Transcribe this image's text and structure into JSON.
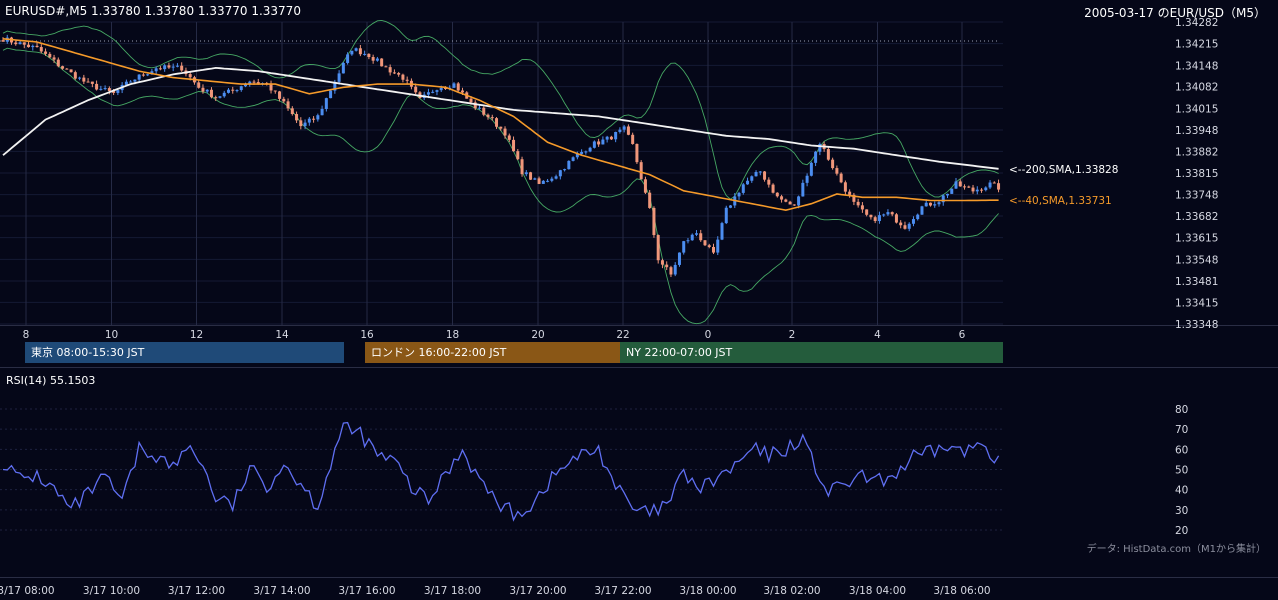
{
  "header": {
    "symbol_ohlc": "EURUSD#,M5 1.33780 1.33780 1.33770 1.33770",
    "date_title": "2005-03-17 のEUR/USD（M5）"
  },
  "sessions": [
    {
      "label": "東京 08:00-15:30 JST",
      "color": "#1f4a78"
    },
    {
      "label": "ロンドン 16:00-22:00 JST",
      "color": "#8a5716"
    },
    {
      "label": "NY 22:00-07:00 JST",
      "color": "#245c3c"
    }
  ],
  "rsi": {
    "label": "RSI(14) 55.1503"
  },
  "credit": "データ: HistData.com（M1から集計）",
  "colors": {
    "background": "#050718",
    "candle_up": "#4c8df0",
    "candle_down": "#f0967a",
    "sma200": "#f2f2f2",
    "sma40": "#f59a2a",
    "bollinger": "#46a864",
    "rsi_line": "#5f6ff2"
  },
  "chart_data": [
    {
      "type": "candlestick",
      "y_ticks": [
        "1.34282",
        "1.34215",
        "1.34148",
        "1.34082",
        "1.34015",
        "1.33948",
        "1.33882",
        "1.33815",
        "1.33748",
        "1.33682",
        "1.33615",
        "1.33548",
        "1.33481",
        "1.33415",
        "1.33348"
      ],
      "ylim": [
        1.33348,
        1.34282
      ],
      "x_ticks": [
        "8",
        "10",
        "12",
        "14",
        "16",
        "18",
        "20",
        "22",
        "0",
        "2",
        "4",
        "6"
      ],
      "annotations": [
        {
          "text": "<--200,SMA,1.33828",
          "value": 1.33828
        },
        {
          "text": "<--40,SMA,1.33731",
          "value": 1.33731
        }
      ],
      "sma200_anchors": [
        [
          0,
          1.3387
        ],
        [
          10,
          1.3398
        ],
        [
          20,
          1.3404
        ],
        [
          30,
          1.3409
        ],
        [
          40,
          1.3412
        ],
        [
          50,
          1.3414
        ],
        [
          60,
          1.3413
        ],
        [
          70,
          1.3411
        ],
        [
          80,
          1.3409
        ],
        [
          90,
          1.3407
        ],
        [
          100,
          1.3405
        ],
        [
          110,
          1.3403
        ],
        [
          120,
          1.3401
        ],
        [
          130,
          1.34
        ],
        [
          140,
          1.3399
        ],
        [
          150,
          1.3397
        ],
        [
          160,
          1.3395
        ],
        [
          170,
          1.3393
        ],
        [
          180,
          1.3392
        ],
        [
          190,
          1.339
        ],
        [
          200,
          1.3389
        ],
        [
          210,
          1.3387
        ],
        [
          220,
          1.3385
        ],
        [
          234,
          1.33828
        ]
      ],
      "sma40_anchors": [
        [
          0,
          1.3423
        ],
        [
          8,
          1.3422
        ],
        [
          16,
          1.3419
        ],
        [
          24,
          1.3416
        ],
        [
          32,
          1.3413
        ],
        [
          40,
          1.3411
        ],
        [
          48,
          1.341
        ],
        [
          56,
          1.3409
        ],
        [
          64,
          1.3409
        ],
        [
          72,
          1.3406
        ],
        [
          80,
          1.3408
        ],
        [
          88,
          1.3409
        ],
        [
          96,
          1.3409
        ],
        [
          104,
          1.3408
        ],
        [
          112,
          1.3404
        ],
        [
          120,
          1.3399
        ],
        [
          128,
          1.3391
        ],
        [
          136,
          1.3387
        ],
        [
          144,
          1.3384
        ],
        [
          152,
          1.3381
        ],
        [
          160,
          1.3376
        ],
        [
          168,
          1.3374
        ],
        [
          176,
          1.3372
        ],
        [
          184,
          1.337
        ],
        [
          190,
          1.3372
        ],
        [
          196,
          1.3375
        ],
        [
          202,
          1.3374
        ],
        [
          210,
          1.3374
        ],
        [
          218,
          1.3373
        ],
        [
          226,
          1.3373
        ],
        [
          234,
          1.33731
        ]
      ],
      "price_anchors": [
        [
          0,
          1.3423
        ],
        [
          8,
          1.342
        ],
        [
          14,
          1.3414
        ],
        [
          20,
          1.3409
        ],
        [
          26,
          1.3406
        ],
        [
          30,
          1.341
        ],
        [
          36,
          1.3414
        ],
        [
          42,
          1.3414
        ],
        [
          46,
          1.3408
        ],
        [
          50,
          1.3405
        ],
        [
          54,
          1.3407
        ],
        [
          58,
          1.341
        ],
        [
          62,
          1.3409
        ],
        [
          66,
          1.3403
        ],
        [
          70,
          1.3396
        ],
        [
          74,
          1.3399
        ],
        [
          78,
          1.341
        ],
        [
          82,
          1.342
        ],
        [
          86,
          1.3418
        ],
        [
          90,
          1.3414
        ],
        [
          94,
          1.3411
        ],
        [
          98,
          1.3404
        ],
        [
          102,
          1.3408
        ],
        [
          106,
          1.3409
        ],
        [
          110,
          1.3403
        ],
        [
          114,
          1.3399
        ],
        [
          118,
          1.3394
        ],
        [
          122,
          1.3382
        ],
        [
          126,
          1.3378
        ],
        [
          130,
          1.3381
        ],
        [
          134,
          1.3386
        ],
        [
          138,
          1.339
        ],
        [
          142,
          1.3392
        ],
        [
          146,
          1.3395
        ],
        [
          148,
          1.339
        ],
        [
          152,
          1.337
        ],
        [
          154,
          1.3355
        ],
        [
          157,
          1.335
        ],
        [
          160,
          1.336
        ],
        [
          163,
          1.3363
        ],
        [
          167,
          1.3356
        ],
        [
          170,
          1.337
        ],
        [
          174,
          1.3378
        ],
        [
          178,
          1.3382
        ],
        [
          182,
          1.3374
        ],
        [
          186,
          1.3371
        ],
        [
          190,
          1.3385
        ],
        [
          192,
          1.3391
        ],
        [
          196,
          1.3381
        ],
        [
          200,
          1.3372
        ],
        [
          204,
          1.3367
        ],
        [
          208,
          1.3369
        ],
        [
          212,
          1.3365
        ],
        [
          216,
          1.3371
        ],
        [
          220,
          1.3373
        ],
        [
          224,
          1.3378
        ],
        [
          228,
          1.3376
        ],
        [
          232,
          1.3378
        ],
        [
          234,
          1.3377
        ]
      ]
    },
    {
      "type": "line",
      "title": "RSI(14) 55.1503",
      "y_ticks": [
        "80",
        "70",
        "60",
        "50",
        "40",
        "30",
        "20"
      ],
      "ylim": [
        20,
        80
      ],
      "x_ticks": [
        "3/17 08:00",
        "3/17 10:00",
        "3/17 12:00",
        "3/17 14:00",
        "3/17 16:00",
        "3/17 18:00",
        "3/17 20:00",
        "3/17 22:00",
        "3/18 00:00",
        "3/18 02:00",
        "3/18 04:00",
        "3/18 06:00"
      ],
      "anchors": [
        [
          0,
          54
        ],
        [
          4,
          45
        ],
        [
          8,
          47
        ],
        [
          12,
          40
        ],
        [
          16,
          30
        ],
        [
          20,
          38
        ],
        [
          24,
          46
        ],
        [
          28,
          34
        ],
        [
          32,
          60
        ],
        [
          36,
          57
        ],
        [
          40,
          51
        ],
        [
          44,
          62
        ],
        [
          46,
          56
        ],
        [
          50,
          36
        ],
        [
          54,
          32
        ],
        [
          58,
          50
        ],
        [
          62,
          42
        ],
        [
          66,
          53
        ],
        [
          70,
          43
        ],
        [
          74,
          32
        ],
        [
          78,
          60
        ],
        [
          80,
          70
        ],
        [
          84,
          68
        ],
        [
          88,
          57
        ],
        [
          92,
          54
        ],
        [
          96,
          41
        ],
        [
          100,
          34
        ],
        [
          104,
          48
        ],
        [
          108,
          60
        ],
        [
          112,
          45
        ],
        [
          116,
          34
        ],
        [
          120,
          28
        ],
        [
          124,
          32
        ],
        [
          128,
          43
        ],
        [
          132,
          52
        ],
        [
          136,
          57
        ],
        [
          140,
          60
        ],
        [
          144,
          42
        ],
        [
          148,
          30
        ],
        [
          152,
          28
        ],
        [
          156,
          32
        ],
        [
          160,
          48
        ],
        [
          164,
          40
        ],
        [
          168,
          46
        ],
        [
          172,
          51
        ],
        [
          176,
          60
        ],
        [
          180,
          57
        ],
        [
          184,
          60
        ],
        [
          188,
          66
        ],
        [
          190,
          55
        ],
        [
          194,
          38
        ],
        [
          198,
          43
        ],
        [
          202,
          46
        ],
        [
          206,
          44
        ],
        [
          210,
          48
        ],
        [
          214,
          56
        ],
        [
          218,
          58
        ],
        [
          222,
          62
        ],
        [
          226,
          58
        ],
        [
          230,
          64
        ],
        [
          234,
          55
        ]
      ]
    }
  ]
}
